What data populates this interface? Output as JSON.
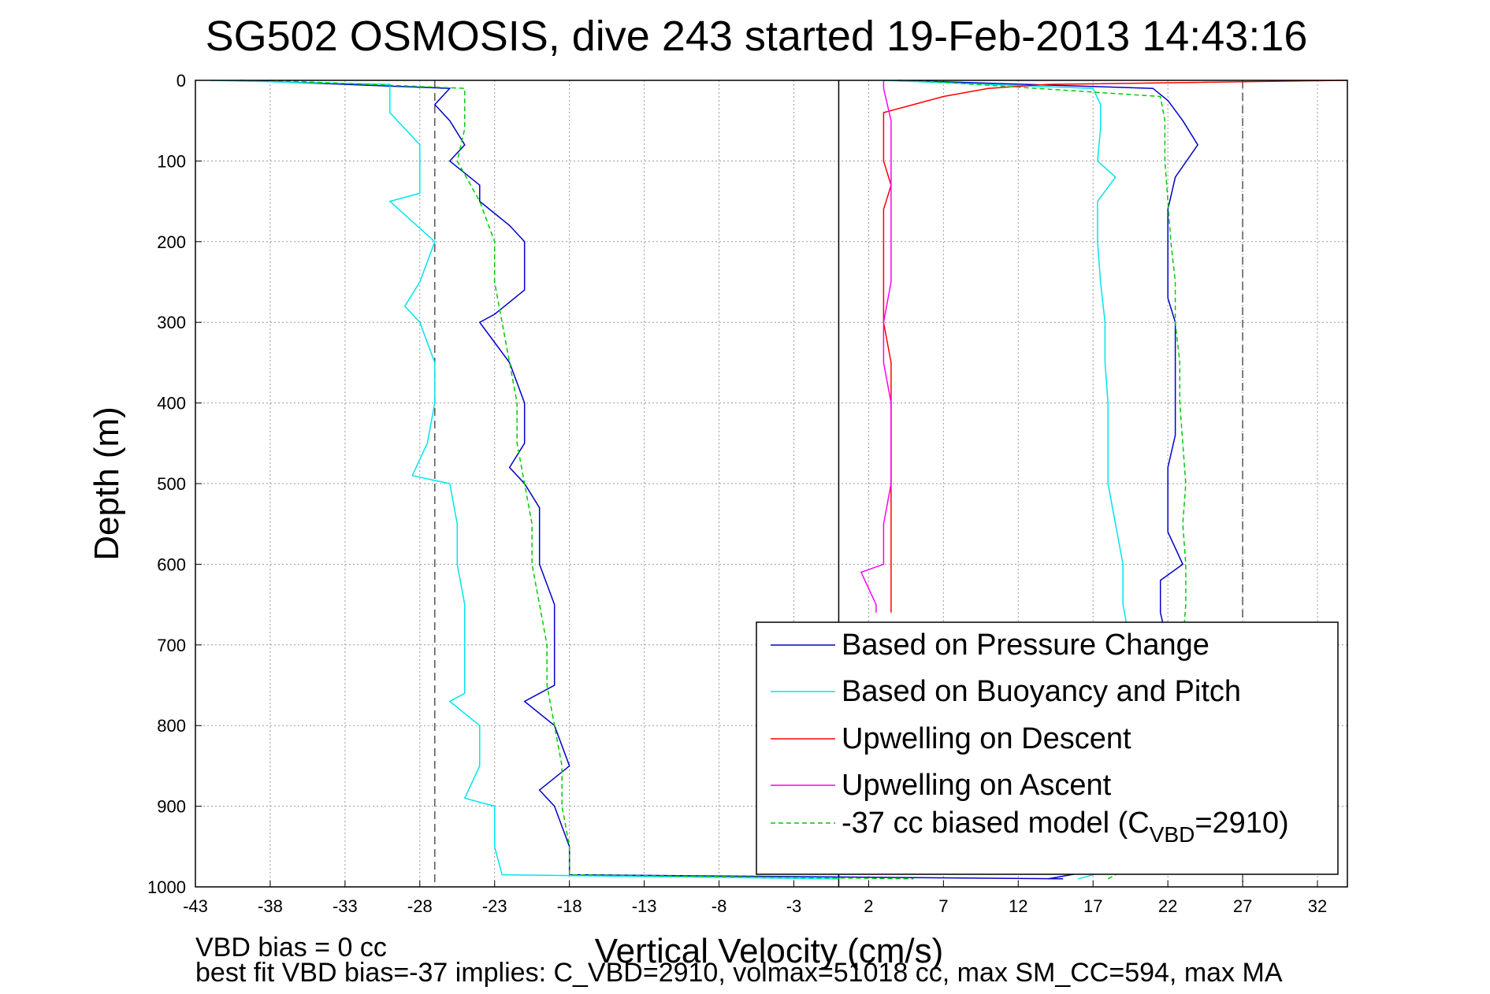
{
  "chart_data": {
    "type": "line",
    "title": "SG502 OSMOSIS, dive 243 started 19-Feb-2013 14:43:16",
    "xlabel": "Vertical Velocity (cm/s)",
    "ylabel": "Depth (m)",
    "xlim": [
      -43,
      34
    ],
    "ylim": [
      0,
      1000
    ],
    "y_reversed": true,
    "grid": true,
    "x_ticks": [
      -43,
      -38,
      -33,
      -28,
      -23,
      -18,
      -13,
      -8,
      -3,
      2,
      7,
      12,
      17,
      22,
      27,
      32
    ],
    "x_tick_labels": [
      "-43",
      "-38",
      "-33",
      "-28",
      "-23",
      "-18",
      "-13",
      "-8",
      "-3",
      "2",
      "7",
      "12",
      "17",
      "22",
      "27",
      "32"
    ],
    "y_ticks": [
      0,
      100,
      200,
      300,
      400,
      500,
      600,
      700,
      800,
      900,
      1000
    ],
    "y_tick_labels": [
      "0",
      "100",
      "200",
      "300",
      "400",
      "500",
      "600",
      "700",
      "800",
      "900",
      "1000"
    ],
    "reference_lines": [
      {
        "x": -27,
        "style": "dashed",
        "color": "#555555"
      },
      {
        "x": 0,
        "style": "solid",
        "color": "#000000"
      },
      {
        "x": 27,
        "style": "dashed",
        "color": "#555555"
      }
    ],
    "legend_position": "lower-right",
    "series": [
      {
        "name": "Based on Pressure Change",
        "color": "#0000cc",
        "dashed": false,
        "depth": [
          0,
          10,
          30,
          50,
          80,
          100,
          130,
          150,
          180,
          200,
          230,
          260,
          290,
          300,
          350,
          400,
          450,
          480,
          500,
          530,
          560,
          600,
          650,
          700,
          750,
          770,
          800,
          850,
          880,
          900,
          950,
          985,
          990
        ],
        "velocity": [
          -40,
          -26,
          -27,
          -26,
          -25,
          -26,
          -24,
          -24,
          -22,
          -21,
          -21,
          -21,
          -23,
          -24,
          -22,
          -21,
          -21,
          -22,
          -21,
          -20,
          -20,
          -20,
          -19,
          -19,
          -19,
          -21,
          -19,
          -18,
          -20,
          -19,
          -18,
          -18,
          15
        ],
        "depth_ascent": [
          990,
          970,
          920,
          880,
          820,
          760,
          700,
          660,
          620,
          600,
          560,
          520,
          480,
          440,
          400,
          350,
          300,
          270,
          240,
          200,
          160,
          120,
          80,
          50,
          25,
          10,
          0
        ],
        "velocity_ascent": [
          14,
          20,
          21,
          21,
          21,
          22,
          22,
          21.5,
          21.5,
          23,
          22,
          22,
          22,
          22.5,
          22.5,
          22.5,
          22.5,
          22,
          22,
          22,
          22,
          22.5,
          24,
          23,
          22,
          21,
          4
        ]
      },
      {
        "name": "Based on Buoyancy and Pitch",
        "color": "#00e5ee",
        "dashed": false,
        "depth": [
          0,
          5,
          20,
          40,
          60,
          80,
          100,
          140,
          150,
          200,
          250,
          280,
          300,
          350,
          400,
          450,
          490,
          500,
          550,
          600,
          650,
          700,
          760,
          770,
          800,
          850,
          890,
          900,
          950,
          985,
          990
        ],
        "velocity": [
          -42,
          -30,
          -30,
          -30,
          -29,
          -28,
          -28,
          -28,
          -30,
          -27,
          -28,
          -29,
          -28,
          -27,
          -27,
          -27.5,
          -28.5,
          -26,
          -25.5,
          -25.5,
          -25,
          -25,
          -25,
          -26,
          -24,
          -24,
          -25,
          -23,
          -23,
          -22.5,
          0
        ],
        "depth_ascent": [
          990,
          970,
          920,
          860,
          780,
          700,
          650,
          600,
          550,
          500,
          450,
          400,
          350,
          300,
          250,
          200,
          150,
          120,
          100,
          60,
          30,
          10,
          0
        ],
        "velocity_ascent": [
          16,
          20,
          20,
          20,
          19.5,
          19.5,
          19,
          19,
          18.5,
          18,
          18,
          18,
          17.8,
          17.8,
          17.5,
          17.3,
          17.3,
          18.5,
          17.3,
          17.5,
          17.5,
          17,
          3
        ]
      },
      {
        "name": "Upwelling on Descent",
        "color": "#ff0000",
        "dashed": false,
        "depth": [
          0,
          5,
          10,
          20,
          40,
          60,
          80,
          100,
          130,
          160,
          200,
          230,
          260,
          300,
          350,
          400,
          450,
          500,
          550,
          600,
          650,
          660
        ],
        "velocity": [
          34,
          14,
          10,
          7,
          3,
          3,
          3,
          3,
          3.5,
          3,
          3,
          3,
          3,
          3,
          3.5,
          3.5,
          3.5,
          3.5,
          3.5,
          3.5,
          3.5,
          3.5
        ]
      },
      {
        "name": "Upwelling on Ascent",
        "color": "#ff00ff",
        "dashed": false,
        "depth": [
          0,
          10,
          50,
          100,
          150,
          200,
          250,
          300,
          350,
          400,
          450,
          500,
          550,
          600,
          610,
          650,
          660
        ],
        "velocity": [
          3,
          3,
          3.5,
          3.5,
          3.5,
          3.5,
          3.5,
          3,
          3,
          3.5,
          3.5,
          3.5,
          3,
          3,
          1.5,
          2.5,
          2.5
        ]
      },
      {
        "name": "-37 cc biased model (C",
        "name_sub": "VBD",
        "name_suffix": "=2910)",
        "color": "#00cc00",
        "dashed": true,
        "depth": [
          0,
          10,
          30,
          60,
          100,
          150,
          200,
          250,
          300,
          350,
          400,
          450,
          500,
          550,
          600,
          650,
          700,
          750,
          800,
          850,
          900,
          950,
          985,
          990
        ],
        "velocity": [
          -38,
          -25,
          -25,
          -25,
          -25.5,
          -24,
          -23,
          -23,
          -22.5,
          -22,
          -21.5,
          -21.5,
          -21,
          -20.5,
          -20.5,
          -20,
          -19.5,
          -19.5,
          -19,
          -18.5,
          -18.5,
          -18,
          -18,
          5
        ],
        "depth_ascent": [
          990,
          950,
          900,
          850,
          800,
          750,
          700,
          650,
          600,
          550,
          500,
          450,
          400,
          350,
          300,
          250,
          200,
          150,
          100,
          50,
          20,
          0
        ],
        "velocity_ascent": [
          18,
          22,
          22,
          22.5,
          22.5,
          22.5,
          23,
          23.2,
          23.2,
          23,
          23.2,
          23,
          22.8,
          22.8,
          22.5,
          22.5,
          22.2,
          22,
          21.8,
          21.8,
          21.5,
          5
        ]
      }
    ]
  },
  "legend": {
    "items": [
      {
        "label": "Based on Pressure Change"
      },
      {
        "label": "Based on Buoyancy and Pitch"
      },
      {
        "label": "Upwelling on Descent"
      },
      {
        "label": "Upwelling on Ascent"
      },
      {
        "label": "-37 cc biased model (C",
        "sub": "VBD",
        "suffix": "=2910)"
      }
    ]
  },
  "footer": {
    "line1": "VBD bias = 0 cc",
    "line2": "best fit VBD bias=-37 implies: C_VBD=2910, volmax=51018 cc, max SM_CC=594, max MA"
  }
}
